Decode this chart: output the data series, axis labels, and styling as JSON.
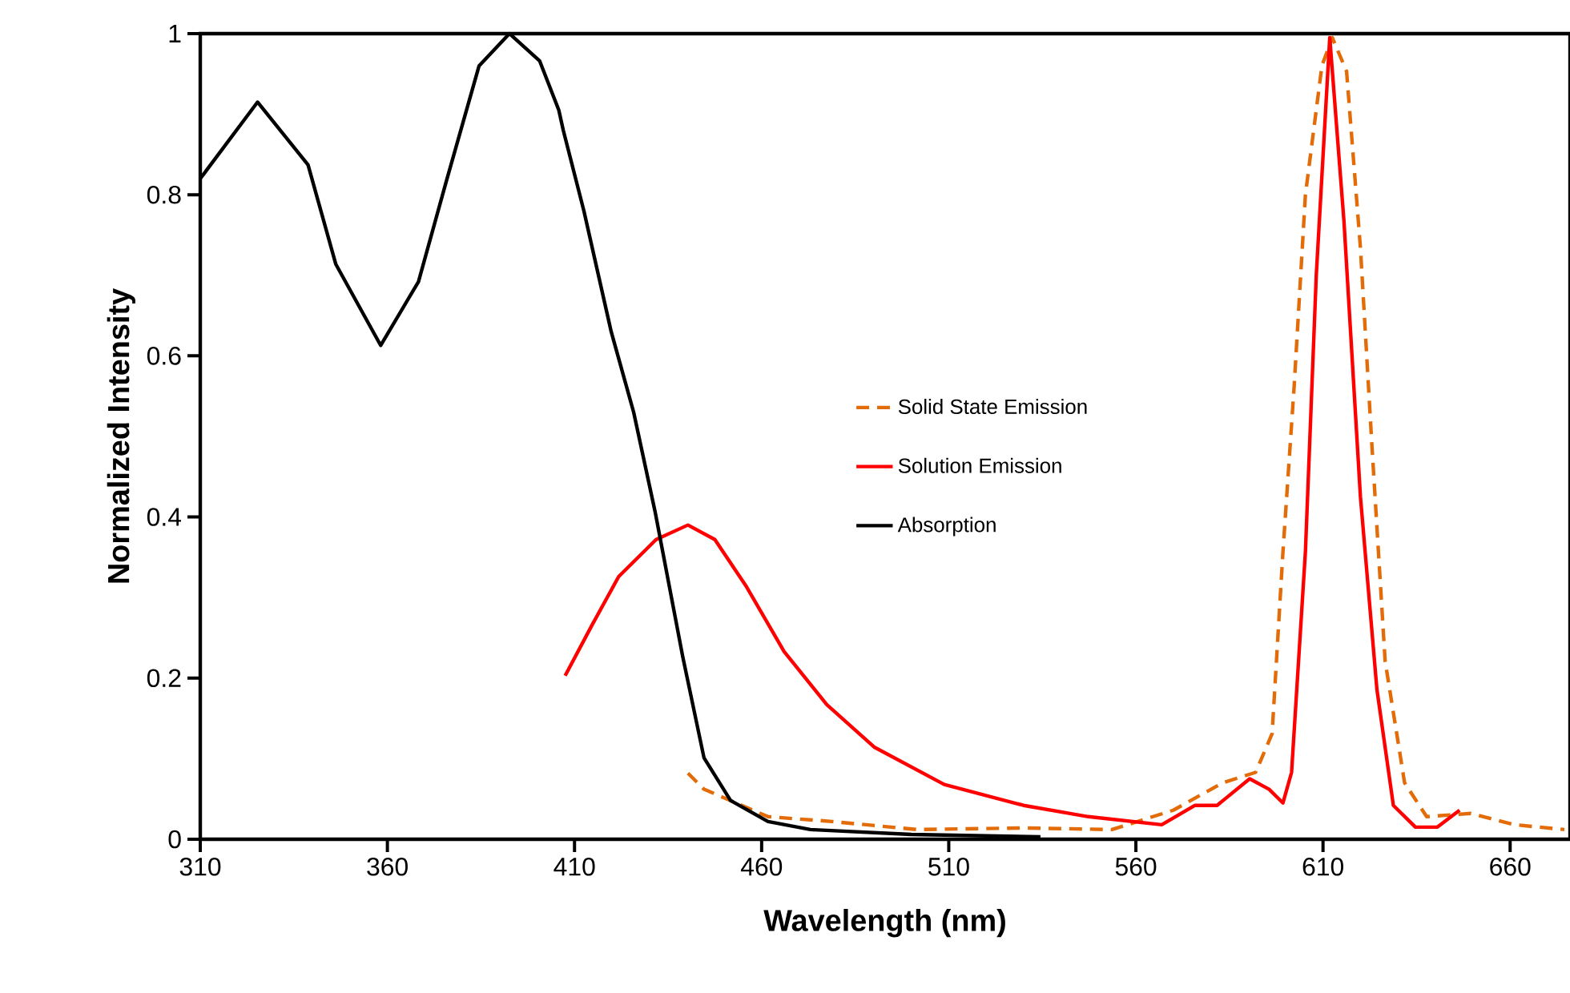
{
  "chart_data": {
    "type": "line",
    "xlabel": "Wavelength (nm)",
    "ylabel": "Normalized Intensity",
    "xlim": [
      310,
      676
    ],
    "ylim": [
      0,
      1
    ],
    "xticks": [
      310,
      360,
      410,
      460,
      510,
      560,
      610,
      660
    ],
    "yticks": [
      0,
      0.2,
      0.4,
      0.6,
      0.8,
      1
    ],
    "grid": false,
    "legend": "right",
    "marker": "none",
    "series": [
      {
        "name": "Solid State Emission",
        "color": "#e36c09",
        "line_style": "dashed",
        "x": [
          440.3,
          444.6,
          451.7,
          461.7,
          478.8,
          501.5,
          530,
          553.6,
          570,
          583.2,
          592,
          596.4,
          599.3,
          602.3,
          605.3,
          609.7,
          612.5,
          616.3,
          620,
          623,
          626.6,
          631.8,
          637.7,
          649.5,
          661.2,
          674.5
        ],
        "values": [
          0.082,
          0.062,
          0.048,
          0.028,
          0.022,
          0.012,
          0.014,
          0.012,
          0.036,
          0.07,
          0.083,
          0.131,
          0.357,
          0.563,
          0.8,
          0.96,
          0.995,
          0.953,
          0.734,
          0.494,
          0.221,
          0.07,
          0.028,
          0.032,
          0.018,
          0.012
        ]
      },
      {
        "name": "Solution Emission",
        "color": "#ff0000",
        "line_style": "solid",
        "x": [
          407.5,
          414.7,
          421.8,
          431.8,
          440.3,
          447.5,
          456,
          466,
          477.4,
          490.2,
          508.8,
          530,
          547.3,
          566.9,
          575.8,
          581.7,
          590.4,
          595.6,
          599.3,
          601.6,
          605.3,
          608.2,
          611.8,
          615.6,
          620,
          624.4,
          628.8,
          634.7,
          640.5,
          646.5
        ],
        "values": [
          0.203,
          0.266,
          0.326,
          0.372,
          0.39,
          0.372,
          0.313,
          0.233,
          0.167,
          0.114,
          0.068,
          0.042,
          0.028,
          0.018,
          0.042,
          0.042,
          0.075,
          0.062,
          0.045,
          0.083,
          0.357,
          0.7,
          0.995,
          0.767,
          0.425,
          0.186,
          0.042,
          0.015,
          0.015,
          0.036
        ]
      },
      {
        "name": "Absorption",
        "color": "#000000",
        "line_style": "solid",
        "x": [
          310,
          325.3,
          338.8,
          346.2,
          358.2,
          368.3,
          375.7,
          384.5,
          392.6,
          400.7,
          405.8,
          407,
          412.5,
          419.8,
          425.8,
          431.6,
          438.9,
          444.6,
          451.7,
          461.7,
          473,
          500,
          534.5
        ],
        "values": [
          0.82,
          0.915,
          0.837,
          0.714,
          0.613,
          0.692,
          0.816,
          0.96,
          1.0,
          0.966,
          0.905,
          0.88,
          0.78,
          0.63,
          0.53,
          0.405,
          0.227,
          0.101,
          0.048,
          0.022,
          0.012,
          0.006,
          0.003
        ]
      }
    ]
  }
}
